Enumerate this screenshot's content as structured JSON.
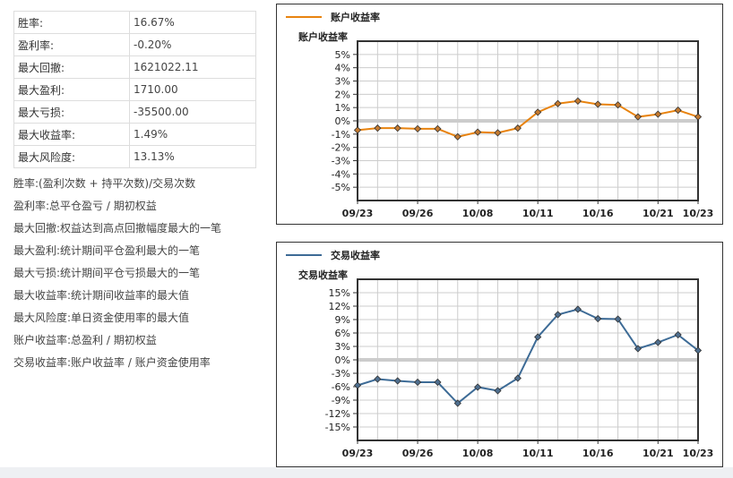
{
  "stats": [
    {
      "label": "胜率:",
      "value": "16.67%"
    },
    {
      "label": "盈利率:",
      "value": "-0.20%"
    },
    {
      "label": "最大回撤:",
      "value": "1621022.11"
    },
    {
      "label": "最大盈利:",
      "value": "1710.00"
    },
    {
      "label": "最大亏损:",
      "value": "-35500.00"
    },
    {
      "label": "最大收益率:",
      "value": "1.49%"
    },
    {
      "label": "最大风险度:",
      "value": "13.13%"
    }
  ],
  "notes": [
    "胜率:(盈利次数 + 持平次数)/交易次数",
    "盈利率:总平仓盈亏 / 期初权益",
    "最大回撤:权益达到高点回撤幅度最大的一笔",
    "最大盈利:统计期间平仓盈利最大的一笔",
    "最大亏损:统计期间平仓亏损最大的一笔",
    "最大收益率:统计期间收益率的最大值",
    "最大风险度:单日资金使用率的最大值",
    "账户收益率:总盈利 / 期初权益",
    "交易收益率:账户收益率 / 账户资金使用率"
  ],
  "chart_data": [
    {
      "type": "line",
      "title": "",
      "ylabel": "账户收益率",
      "legend": "账户收益率",
      "legend_position": "top-left",
      "color": "#e8830f",
      "ylim": [
        -6,
        6
      ],
      "yticks": [
        5,
        4,
        3,
        2,
        1,
        0,
        -1,
        -2,
        -3,
        -4,
        -5
      ],
      "grid": true,
      "x_tick_labels": {
        "0": "09/23",
        "3": "09/26",
        "6": "10/08",
        "9": "10/11",
        "12": "10/16",
        "15": "10/21",
        "17": "10/23"
      },
      "series": [
        {
          "name": "账户收益率",
          "values": [
            -0.7,
            -0.55,
            -0.55,
            -0.6,
            -0.6,
            -1.2,
            -0.85,
            -0.9,
            -0.55,
            0.65,
            1.3,
            1.49,
            1.25,
            1.2,
            0.3,
            0.5,
            0.8,
            0.3
          ]
        }
      ]
    },
    {
      "type": "line",
      "title": "",
      "ylabel": "交易收益率",
      "legend": "交易收益率",
      "legend_position": "top-left",
      "color": "#3d6b96",
      "ylim": [
        -18,
        18
      ],
      "yticks": [
        15,
        12,
        9,
        6,
        3,
        0,
        -3,
        -6,
        -9,
        -12,
        -15
      ],
      "grid": true,
      "x_tick_labels": {
        "0": "09/23",
        "3": "09/26",
        "6": "10/08",
        "9": "10/11",
        "12": "10/16",
        "15": "10/21",
        "17": "10/23"
      },
      "series": [
        {
          "name": "交易收益率",
          "values": [
            -5.7,
            -4.3,
            -4.7,
            -5.0,
            -5.0,
            -9.7,
            -6.1,
            -6.9,
            -4.1,
            5.1,
            10.1,
            11.3,
            9.2,
            9.1,
            2.5,
            3.9,
            5.6,
            2.1
          ]
        }
      ]
    }
  ]
}
